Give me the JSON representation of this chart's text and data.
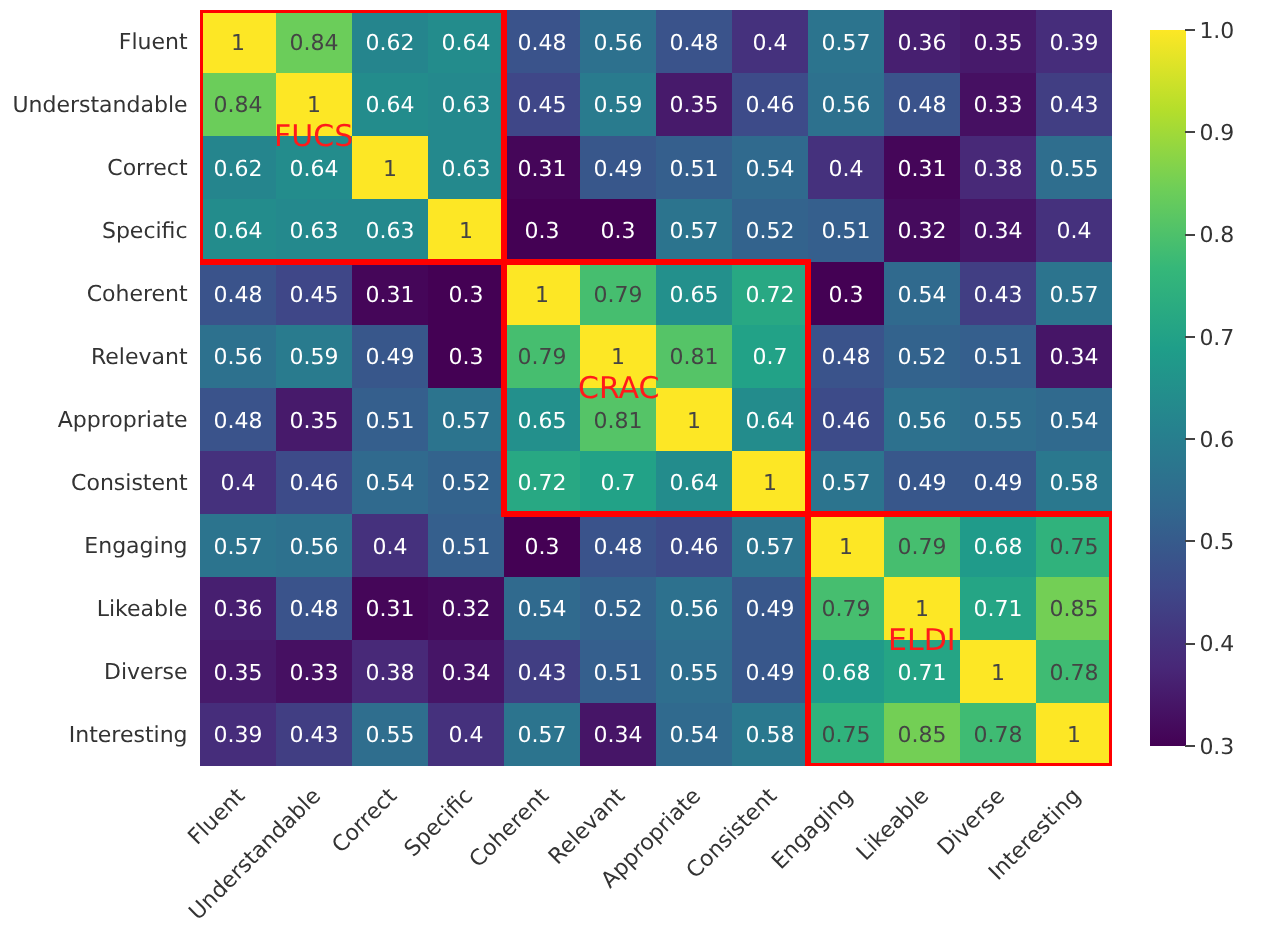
{
  "chart_data": {
    "type": "heatmap",
    "categories": [
      "Fluent",
      "Understandable",
      "Correct",
      "Specific",
      "Coherent",
      "Relevant",
      "Appropriate",
      "Consistent",
      "Engaging",
      "Likeable",
      "Diverse",
      "Interesting"
    ],
    "y_categories": [
      "Fluent",
      "Understandable",
      "Correct",
      "Specific",
      "Coherent",
      "Relevant",
      "Appropriate",
      "Consistent",
      "Engaging",
      "Likeable",
      "Diverse",
      "Interesting"
    ],
    "cells": [
      [
        1,
        0.84,
        0.62,
        0.64,
        0.48,
        0.56,
        0.48,
        0.4,
        0.57,
        0.36,
        0.35,
        0.39
      ],
      [
        0.84,
        1,
        0.64,
        0.63,
        0.45,
        0.59,
        0.35,
        0.46,
        0.56,
        0.48,
        0.33,
        0.43
      ],
      [
        0.62,
        0.64,
        1,
        0.63,
        0.31,
        0.49,
        0.51,
        0.54,
        0.4,
        0.31,
        0.38,
        0.55
      ],
      [
        0.64,
        0.63,
        0.63,
        1,
        0.3,
        0.3,
        0.57,
        0.52,
        0.51,
        0.32,
        0.34,
        0.4
      ],
      [
        0.48,
        0.45,
        0.31,
        0.3,
        1,
        0.79,
        0.65,
        0.72,
        0.3,
        0.54,
        0.43,
        0.57
      ],
      [
        0.56,
        0.59,
        0.49,
        0.3,
        0.79,
        1,
        0.81,
        0.7,
        0.48,
        0.52,
        0.51,
        0.34
      ],
      [
        0.48,
        0.35,
        0.51,
        0.57,
        0.65,
        0.81,
        1,
        0.64,
        0.46,
        0.56,
        0.55,
        0.54
      ],
      [
        0.4,
        0.46,
        0.54,
        0.52,
        0.72,
        0.7,
        0.64,
        1,
        0.57,
        0.49,
        0.49,
        0.58
      ],
      [
        0.57,
        0.56,
        0.4,
        0.51,
        0.3,
        0.48,
        0.46,
        0.57,
        1,
        0.79,
        0.68,
        0.75
      ],
      [
        0.36,
        0.48,
        0.31,
        0.32,
        0.54,
        0.52,
        0.56,
        0.49,
        0.79,
        1,
        0.71,
        0.85
      ],
      [
        0.35,
        0.33,
        0.38,
        0.34,
        0.43,
        0.51,
        0.55,
        0.49,
        0.68,
        0.71,
        1,
        0.78
      ],
      [
        0.39,
        0.43,
        0.55,
        0.4,
        0.57,
        0.34,
        0.54,
        0.58,
        0.75,
        0.85,
        0.78,
        1
      ]
    ],
    "clim": [
      0.3,
      1
    ],
    "cticks": [
      0.3,
      0.4,
      0.5,
      0.6,
      0.7,
      0.8,
      0.9,
      {
        "value": 1,
        "label": "1.0"
      }
    ],
    "data_labels": true,
    "annotations": [
      "FUCS",
      "CRAC",
      "ELDI"
    ]
  }
}
